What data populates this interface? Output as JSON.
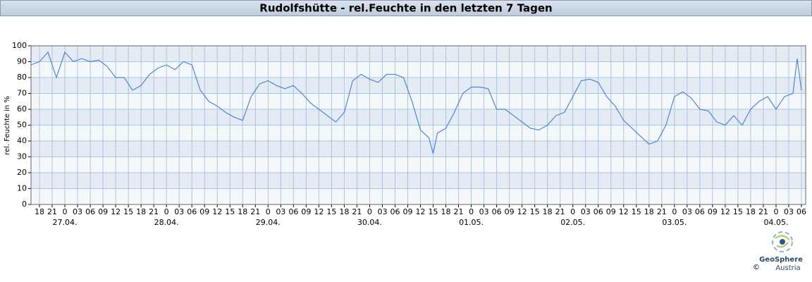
{
  "chart_data": {
    "type": "line",
    "title": "Rudolfshütte - rel.Feuchte in den letzten 7 Tagen",
    "ylabel": "rel. Feuchte in %",
    "logo": "GeoSphere",
    "logo_sub": "Austria",
    "copyright": "©",
    "xlim": [
      "26.04. 16",
      "04.05. 07"
    ],
    "ylim": [
      0,
      100
    ],
    "yticks": [
      0,
      10,
      20,
      30,
      40,
      50,
      60,
      70,
      80,
      90,
      100
    ],
    "grid": true,
    "xticks": [
      {
        "value": "26.04. 18",
        "label": "18"
      },
      {
        "value": "26.04. 21",
        "label": "21"
      },
      {
        "value": "27.04. 00",
        "label": "0"
      },
      {
        "value": "27.04. 03",
        "label": "03"
      },
      {
        "value": "27.04. 06",
        "label": "06"
      },
      {
        "value": "27.04. 09",
        "label": "09"
      },
      {
        "value": "27.04. 12",
        "label": "12"
      },
      {
        "value": "27.04. 15",
        "label": "15"
      },
      {
        "value": "27.04. 18",
        "label": "18"
      },
      {
        "value": "27.04. 21",
        "label": "21"
      },
      {
        "value": "28.04. 00",
        "label": "0"
      },
      {
        "value": "28.04. 03",
        "label": "03"
      },
      {
        "value": "28.04. 06",
        "label": "06"
      },
      {
        "value": "28.04. 09",
        "label": "09"
      },
      {
        "value": "28.04. 12",
        "label": "12"
      },
      {
        "value": "28.04. 15",
        "label": "15"
      },
      {
        "value": "28.04. 18",
        "label": "18"
      },
      {
        "value": "28.04. 21",
        "label": "21"
      },
      {
        "value": "29.04. 00",
        "label": "0"
      },
      {
        "value": "29.04. 03",
        "label": "03"
      },
      {
        "value": "29.04. 06",
        "label": "06"
      },
      {
        "value": "29.04. 09",
        "label": "09"
      },
      {
        "value": "29.04. 12",
        "label": "12"
      },
      {
        "value": "29.04. 15",
        "label": "15"
      },
      {
        "value": "29.04. 18",
        "label": "18"
      },
      {
        "value": "29.04. 21",
        "label": "21"
      },
      {
        "value": "30.04. 00",
        "label": "0"
      },
      {
        "value": "30.04. 03",
        "label": "03"
      },
      {
        "value": "30.04. 06",
        "label": "06"
      },
      {
        "value": "30.04. 09",
        "label": "09"
      },
      {
        "value": "30.04. 12",
        "label": "12"
      },
      {
        "value": "30.04. 15",
        "label": "15"
      },
      {
        "value": "30.04. 18",
        "label": "18"
      },
      {
        "value": "30.04. 21",
        "label": "21"
      },
      {
        "value": "01.05. 00",
        "label": "0"
      },
      {
        "value": "01.05. 03",
        "label": "03"
      },
      {
        "value": "01.05. 06",
        "label": "06"
      },
      {
        "value": "01.05. 09",
        "label": "09"
      },
      {
        "value": "01.05. 12",
        "label": "12"
      },
      {
        "value": "01.05. 15",
        "label": "15"
      },
      {
        "value": "01.05. 18",
        "label": "18"
      },
      {
        "value": "01.05. 21",
        "label": "21"
      },
      {
        "value": "02.05. 00",
        "label": "0"
      },
      {
        "value": "02.05. 03",
        "label": "03"
      },
      {
        "value": "02.05. 06",
        "label": "06"
      },
      {
        "value": "02.05. 09",
        "label": "09"
      },
      {
        "value": "02.05. 12",
        "label": "12"
      },
      {
        "value": "02.05. 15",
        "label": "15"
      },
      {
        "value": "02.05. 18",
        "label": "18"
      },
      {
        "value": "02.05. 21",
        "label": "21"
      },
      {
        "value": "03.05. 00",
        "label": "0"
      },
      {
        "value": "03.05. 03",
        "label": "03"
      },
      {
        "value": "03.05. 06",
        "label": "06"
      },
      {
        "value": "03.05. 09",
        "label": "09"
      },
      {
        "value": "03.05. 12",
        "label": "12"
      },
      {
        "value": "03.05. 15",
        "label": "15"
      },
      {
        "value": "03.05. 18",
        "label": "18"
      },
      {
        "value": "03.05. 21",
        "label": "21"
      },
      {
        "value": "04.05. 00",
        "label": "0"
      },
      {
        "value": "04.05. 03",
        "label": "03"
      },
      {
        "value": "04.05. 06",
        "label": "06"
      }
    ],
    "date_labels": [
      {
        "value": "27.04. 00",
        "label": "27.04."
      },
      {
        "value": "28.04. 00",
        "label": "28.04."
      },
      {
        "value": "29.04. 00",
        "label": "29.04."
      },
      {
        "value": "30.04. 00",
        "label": "30.04."
      },
      {
        "value": "01.05. 00",
        "label": "01.05."
      },
      {
        "value": "02.05. 00",
        "label": "02.05."
      },
      {
        "value": "03.05. 00",
        "label": "03.05."
      },
      {
        "value": "04.05. 00",
        "label": "04.05."
      }
    ],
    "series": [
      {
        "name": "rel. Feuchte",
        "color": "#4f86d9",
        "x": [
          "26.04. 16",
          "26.04. 18",
          "26.04. 20",
          "26.04. 22",
          "27.04. 00",
          "27.04. 02",
          "27.04. 04",
          "27.04. 06",
          "27.04. 08",
          "27.04. 10",
          "27.04. 12",
          "27.04. 14",
          "27.04. 16",
          "27.04. 18",
          "27.04. 20",
          "27.04. 22",
          "28.04. 00",
          "28.04. 02",
          "28.04. 04",
          "28.04. 06",
          "28.04. 08",
          "28.04. 10",
          "28.04. 12",
          "28.04. 14",
          "28.04. 16",
          "28.04. 18",
          "28.04. 20",
          "28.04. 22",
          "29.04. 00",
          "29.04. 02",
          "29.04. 04",
          "29.04. 06",
          "29.04. 08",
          "29.04. 10",
          "29.04. 12",
          "29.04. 14",
          "29.04. 16",
          "29.04. 18",
          "29.04. 20",
          "29.04. 22",
          "30.04. 00",
          "30.04. 02",
          "30.04. 04",
          "30.04. 06",
          "30.04. 08",
          "30.04. 10",
          "30.04. 12",
          "30.04. 14",
          "30.04. 15",
          "30.04. 16",
          "30.04. 18",
          "30.04. 20",
          "30.04. 22",
          "01.05. 00",
          "01.05. 02",
          "01.05. 04",
          "01.05. 06",
          "01.05. 08",
          "01.05. 10",
          "01.05. 12",
          "01.05. 14",
          "01.05. 16",
          "01.05. 18",
          "01.05. 20",
          "01.05. 22",
          "02.05. 00",
          "02.05. 02",
          "02.05. 04",
          "02.05. 06",
          "02.05. 08",
          "02.05. 10",
          "02.05. 12",
          "02.05. 14",
          "02.05. 16",
          "02.05. 18",
          "02.05. 20",
          "02.05. 22",
          "03.05. 00",
          "03.05. 02",
          "03.05. 04",
          "03.05. 06",
          "03.05. 08",
          "03.05. 10",
          "03.05. 12",
          "03.05. 14",
          "03.05. 16",
          "03.05. 18",
          "03.05. 20",
          "03.05. 22",
          "04.05. 00",
          "04.05. 02",
          "04.05. 04",
          "04.05. 05",
          "04.05. 06"
        ],
        "values": [
          88,
          90,
          96,
          80,
          96,
          90,
          92,
          90,
          91,
          87,
          80,
          80,
          72,
          75,
          82,
          86,
          88,
          85,
          90,
          88,
          72,
          65,
          62,
          58,
          55,
          53,
          68,
          76,
          78,
          75,
          73,
          75,
          70,
          64,
          60,
          56,
          52,
          58,
          78,
          82,
          79,
          77,
          82,
          82,
          80,
          65,
          47,
          42,
          32,
          45,
          48,
          58,
          70,
          74,
          74,
          73,
          60,
          60,
          56,
          52,
          48,
          47,
          50,
          56,
          58,
          68,
          78,
          79,
          77,
          68,
          62,
          53,
          48,
          43,
          38,
          40,
          50,
          68,
          71,
          67,
          60,
          59,
          52,
          50,
          56,
          50,
          60,
          65,
          68,
          60,
          68,
          70,
          92,
          72
        ]
      }
    ]
  }
}
